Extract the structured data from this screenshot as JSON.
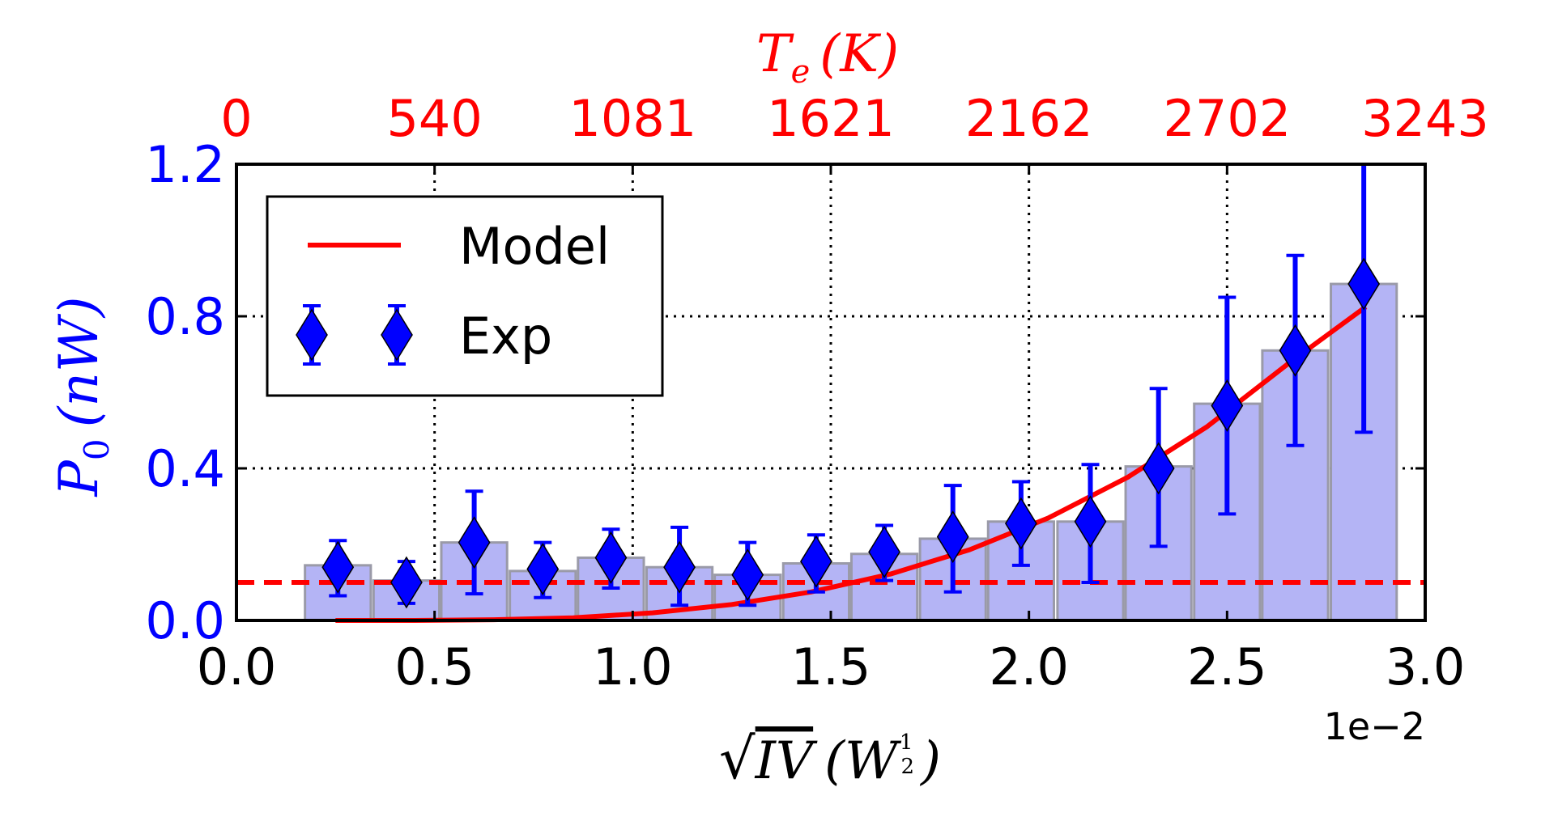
{
  "chart_data": {
    "type": "bar",
    "xlabel": "√IV (W^½)",
    "xlabel_parts": {
      "sqrt": "√",
      "var": "IV",
      "open": "(W",
      "exp_num": "1",
      "exp_den": "2",
      "close": ")"
    },
    "ylabel": "P0 (nW)",
    "ylabel_parts": {
      "var": "P",
      "sub": "0",
      "unit": "(nW)"
    },
    "toplabel": "Te (K)",
    "toplabel_parts": {
      "var": "T",
      "sub": "e",
      "unit": "(K)"
    },
    "x_offset_label": "1e−2",
    "xlim": [
      0,
      3.0
    ],
    "ylim": [
      0,
      1.2
    ],
    "x_ticks": [
      0.0,
      0.5,
      1.0,
      1.5,
      2.0,
      2.5,
      3.0
    ],
    "x_tick_labels": [
      "0.0",
      "0.5",
      "1.0",
      "1.5",
      "2.0",
      "2.5",
      "3.0"
    ],
    "y_ticks": [
      0.0,
      0.4,
      0.8,
      1.2
    ],
    "y_tick_labels": [
      "0.0",
      "0.4",
      "0.8",
      "1.2"
    ],
    "top_ticks": [
      0,
      0.5,
      1.0,
      1.5,
      2.0,
      2.5,
      3.0
    ],
    "top_tick_labels": [
      "0",
      "540",
      "1081",
      "1621",
      "2162",
      "2702",
      "3243"
    ],
    "grid": true,
    "legend": {
      "position": "top-left",
      "entries": [
        "Model",
        "Exp"
      ]
    },
    "bars": {
      "color": "#b4b4f5",
      "edge_color": "#9a9aa8",
      "width": 0.166,
      "x": [
        0.256,
        0.429,
        0.6,
        0.773,
        0.945,
        1.118,
        1.29,
        1.463,
        1.635,
        1.808,
        1.98,
        2.155,
        2.327,
        2.5,
        2.672,
        2.845
      ],
      "values": [
        0.145,
        0.105,
        0.205,
        0.13,
        0.165,
        0.14,
        0.12,
        0.15,
        0.175,
        0.215,
        0.26,
        0.26,
        0.405,
        0.57,
        0.71,
        0.885
      ]
    },
    "series": [
      {
        "name": "Model",
        "kind": "line",
        "color": "#ff0000",
        "x": [
          0.25,
          0.45,
          0.65,
          0.85,
          1.05,
          1.25,
          1.45,
          1.65,
          1.85,
          2.05,
          2.25,
          2.45,
          2.65,
          2.85
        ],
        "y": [
          0.0,
          0.0,
          0.002,
          0.007,
          0.02,
          0.042,
          0.075,
          0.122,
          0.186,
          0.27,
          0.377,
          0.51,
          0.672,
          0.825
        ]
      },
      {
        "name": "Exp",
        "kind": "errorbar",
        "color": "#0000ff",
        "marker": "diamond",
        "x": [
          0.256,
          0.429,
          0.6,
          0.773,
          0.945,
          1.118,
          1.29,
          1.463,
          1.635,
          1.808,
          1.98,
          2.155,
          2.327,
          2.5,
          2.672,
          2.845
        ],
        "y": [
          0.14,
          0.1,
          0.205,
          0.135,
          0.165,
          0.14,
          0.12,
          0.155,
          0.18,
          0.22,
          0.255,
          0.26,
          0.4,
          0.565,
          0.71,
          0.885
        ],
        "yerr_low": [
          0.075,
          0.055,
          0.135,
          0.075,
          0.08,
          0.1,
          0.08,
          0.08,
          0.075,
          0.145,
          0.11,
          0.16,
          0.205,
          0.285,
          0.25,
          0.39
        ],
        "yerr_high": [
          0.07,
          0.055,
          0.135,
          0.07,
          0.075,
          0.105,
          0.085,
          0.07,
          0.07,
          0.135,
          0.11,
          0.15,
          0.21,
          0.285,
          0.25,
          0.34
        ]
      },
      {
        "name": "",
        "kind": "hline",
        "color": "#ff0000",
        "style": "dashed",
        "y": 0.1
      }
    ]
  }
}
